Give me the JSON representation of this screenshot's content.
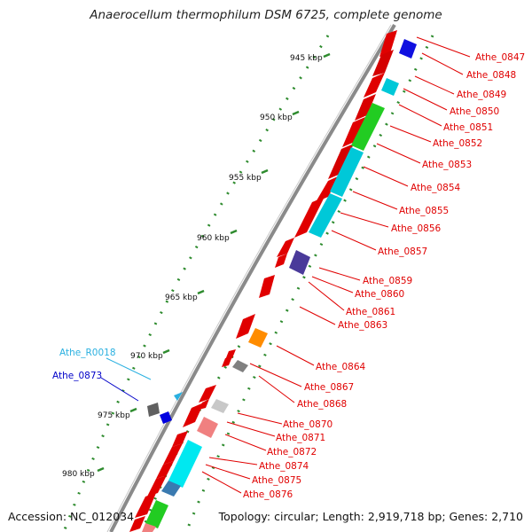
{
  "title": "Anaerocellum thermophilum DSM 6725, complete genome",
  "footer": {
    "accession": "Accession: NC_012034",
    "summary": "Topology: circular; Length: 2,919,718 bp; Genes: 2,710"
  },
  "colors": {
    "backbone": "#8a8a8a",
    "dots": "#2e8b2e",
    "label_red": "#e00000",
    "label_blue": "#0000c8",
    "label_cyan": "#2ab0e0"
  },
  "ticks": [
    {
      "label": "945 kbp"
    },
    {
      "label": "950 kbp"
    },
    {
      "label": "955 kbp"
    },
    {
      "label": "960 kbp"
    },
    {
      "label": "965 kbp"
    },
    {
      "label": "970 kbp"
    },
    {
      "label": "975 kbp"
    },
    {
      "label": "980 kbp"
    }
  ],
  "features": [
    {
      "label": "Athe_0847"
    },
    {
      "label": "Athe_0848"
    },
    {
      "label": "Athe_0849"
    },
    {
      "label": "Athe_0850"
    },
    {
      "label": "Athe_0851"
    },
    {
      "label": "Athe_0852"
    },
    {
      "label": "Athe_0853"
    },
    {
      "label": "Athe_0854"
    },
    {
      "label": "Athe_0855"
    },
    {
      "label": "Athe_0856"
    },
    {
      "label": "Athe_0857"
    },
    {
      "label": "Athe_0859"
    },
    {
      "label": "Athe_0860"
    },
    {
      "label": "Athe_0861"
    },
    {
      "label": "Athe_0863"
    },
    {
      "label": "Athe_0864"
    },
    {
      "label": "Athe_0867"
    },
    {
      "label": "Athe_0868"
    },
    {
      "label": "Athe_0870"
    },
    {
      "label": "Athe_0871"
    },
    {
      "label": "Athe_0872"
    },
    {
      "label": "Athe_0874"
    },
    {
      "label": "Athe_0875"
    },
    {
      "label": "Athe_0876"
    },
    {
      "label": "Athe_R0018"
    },
    {
      "label": "Athe_0873"
    }
  ]
}
